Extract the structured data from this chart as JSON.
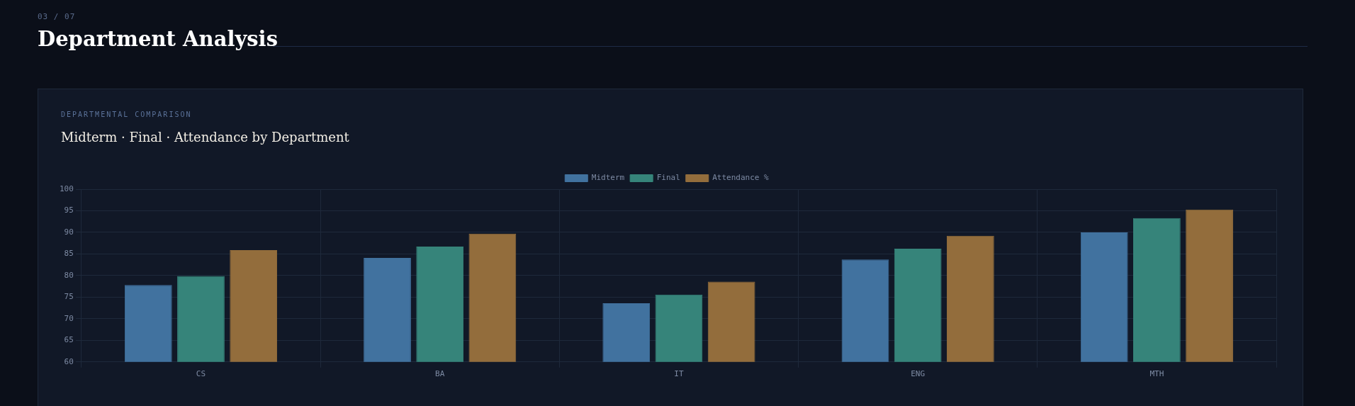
{
  "chart_data": {
    "type": "bar",
    "title": "Midterm · Final · Attendance by Department",
    "subtitle": "DEPARTMENTAL COMPARISON",
    "annotations": [
      "03 / 07",
      "Department Analysis"
    ],
    "categories": [
      "CS",
      "BA",
      "IT",
      "ENG",
      "MTH"
    ],
    "series": [
      {
        "name": "Midterm",
        "color": "#41729f",
        "values": [
          77.8,
          84.1,
          73.6,
          83.7,
          90.0
        ]
      },
      {
        "name": "Final",
        "color": "#36847a",
        "values": [
          79.9,
          86.7,
          75.6,
          86.2,
          93.3
        ]
      },
      {
        "name": "Attendance %",
        "color": "#936d3c",
        "values": [
          85.9,
          89.7,
          78.6,
          89.2,
          95.3
        ]
      }
    ],
    "ylim": [
      60,
      100
    ],
    "yticks": [
      60,
      65,
      70,
      75,
      80,
      85,
      90,
      95,
      100
    ],
    "grid": true,
    "legend": "top"
  }
}
